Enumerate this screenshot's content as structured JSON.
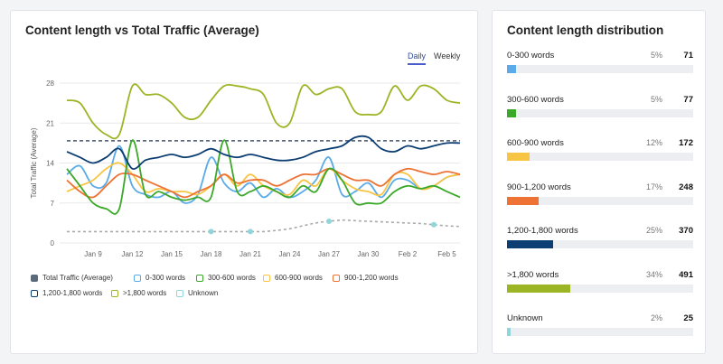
{
  "left_title": "Content length vs Total Traffic (Average)",
  "tabs": {
    "daily": "Daily",
    "weekly": "Weekly"
  },
  "colors": {
    "total": "#2c3e50",
    "s0_300": "#5aabe8",
    "s300_600": "#3aa828",
    "s600_900": "#f8c443",
    "s900_1200": "#ed7234",
    "s1200_1800": "#0d3e73",
    "s1800": "#9bb524",
    "unknown": "#8fd6db",
    "avg_line": "#46546a",
    "grid": "#e8e8e8"
  },
  "chart_data": {
    "type": "line",
    "title": "Content length vs Total Traffic (Average)",
    "ylabel": "Total Traffic (Average)",
    "xlabel": "",
    "ylim": [
      0,
      28
    ],
    "yticks": [
      0,
      7,
      14,
      21,
      28
    ],
    "x_range": [
      0,
      30
    ],
    "xticks": [
      {
        "x": 2,
        "label": "Jan 9"
      },
      {
        "x": 5,
        "label": "Jan 12"
      },
      {
        "x": 8,
        "label": "Jan 15"
      },
      {
        "x": 11,
        "label": "Jan 18"
      },
      {
        "x": 14,
        "label": "Jan 21"
      },
      {
        "x": 17,
        "label": "Jan 24"
      },
      {
        "x": 20,
        "label": "Jan 27"
      },
      {
        "x": 23,
        "label": "Jan 30"
      },
      {
        "x": 26,
        "label": "Feb 2"
      },
      {
        "x": 29,
        "label": "Feb 5"
      }
    ],
    "avg_line": 17.9,
    "series": [
      {
        "name": "Total Traffic (Average)",
        "color_key": "total",
        "style": "dashed",
        "values": [
          17.9,
          17.9
        ]
      },
      {
        "name": "0-300 words",
        "color_key": "s0_300",
        "values": [
          12,
          13.5,
          10,
          10.5,
          17,
          10,
          8.5,
          8,
          9,
          7,
          8.5,
          15,
          10.5,
          9,
          10.5,
          8,
          9.5,
          8,
          9,
          11,
          15,
          8.5,
          9,
          10.5,
          8,
          11,
          11,
          9.5,
          10,
          11.5,
          12
        ]
      },
      {
        "name": "300-600 words",
        "color_key": "s300_600",
        "values": [
          13,
          10,
          7,
          6,
          6,
          18,
          8.5,
          9,
          8,
          7.5,
          8,
          8,
          18,
          9,
          9,
          10,
          9,
          8,
          10,
          9,
          13,
          11,
          7,
          7,
          7,
          9,
          10,
          9.5,
          10,
          9,
          8
        ]
      },
      {
        "name": "600-900 words",
        "color_key": "s600_900",
        "values": [
          9,
          10,
          11,
          13,
          14,
          12,
          9,
          9.5,
          9,
          9,
          8.5,
          10,
          12,
          10,
          12,
          10,
          9,
          8.5,
          11,
          10,
          13,
          11,
          9.5,
          9,
          8.5,
          12,
          12,
          9.5,
          10,
          11.5,
          12
        ]
      },
      {
        "name": "900-1,200 words",
        "color_key": "s900_1200",
        "values": [
          11,
          9,
          8,
          10,
          12,
          12,
          11,
          10,
          9,
          8,
          9,
          10,
          12,
          10.5,
          11,
          11,
          10,
          11,
          12,
          12,
          13,
          12,
          11,
          11,
          10,
          12,
          13,
          12.5,
          12,
          12.5,
          12
        ]
      },
      {
        "name": "1,200-1,800 words",
        "color_key": "s1200_1800",
        "values": [
          16,
          15,
          14,
          15,
          16.5,
          13,
          14.5,
          15,
          15.5,
          15,
          15.5,
          16.5,
          15.5,
          15,
          15.5,
          15,
          14.5,
          14.5,
          15,
          16,
          16.5,
          17,
          18.5,
          18.5,
          16.5,
          16,
          17,
          16.5,
          17,
          17.5,
          17.5
        ]
      },
      {
        "name": ">1,800 words",
        "color_key": "s1800",
        "values": [
          25,
          24.5,
          21,
          19,
          19,
          27.5,
          26,
          26,
          24.5,
          22,
          22,
          25,
          27.5,
          27.5,
          27,
          26,
          21,
          21,
          27.5,
          26,
          27,
          27,
          23,
          22.5,
          23,
          27.5,
          25,
          27.5,
          27,
          25,
          24.5
        ]
      },
      {
        "name": "Unknown",
        "color_key": "unknown",
        "style": "dotted",
        "values": [
          2,
          2,
          2,
          2,
          2,
          2,
          2,
          2,
          2,
          2,
          2,
          2,
          2,
          2,
          2,
          2,
          2.2,
          2.5,
          3,
          3.5,
          3.8,
          4,
          3.9,
          3.8,
          3.7,
          3.6,
          3.5,
          3.4,
          3.2,
          3,
          2.9
        ],
        "markers": [
          11,
          14,
          20,
          28
        ]
      }
    ]
  },
  "legend": [
    {
      "label": "Total Traffic (Average)",
      "color_key": "total",
      "style": "solid"
    },
    {
      "label": "0-300 words",
      "color_key": "s0_300",
      "style": "outline"
    },
    {
      "label": "300-600 words",
      "color_key": "s300_600",
      "style": "outline"
    },
    {
      "label": "600-900 words",
      "color_key": "s600_900",
      "style": "outline"
    },
    {
      "label": "900-1,200 words",
      "color_key": "s900_1200",
      "style": "outline"
    },
    {
      "label": "1,200-1,800 words",
      "color_key": "s1200_1800",
      "style": "outline"
    },
    {
      "label": ">1,800 words",
      "color_key": "s1800",
      "style": "outline"
    },
    {
      "label": "Unknown",
      "color_key": "unknown",
      "style": "outline"
    }
  ],
  "right_title": "Content length distribution",
  "distribution": [
    {
      "label": "0-300 words",
      "pct": "5%",
      "count": "71",
      "fraction": 0.05,
      "color_key": "s0_300"
    },
    {
      "label": "300-600 words",
      "pct": "5%",
      "count": "77",
      "fraction": 0.05,
      "color_key": "s300_600"
    },
    {
      "label": "600-900 words",
      "pct": "12%",
      "count": "172",
      "fraction": 0.12,
      "color_key": "s600_900"
    },
    {
      "label": "900-1,200 words",
      "pct": "17%",
      "count": "248",
      "fraction": 0.17,
      "color_key": "s900_1200"
    },
    {
      "label": "1,200-1,800 words",
      "pct": "25%",
      "count": "370",
      "fraction": 0.25,
      "color_key": "s1200_1800"
    },
    {
      "label": ">1,800 words",
      "pct": "34%",
      "count": "491",
      "fraction": 0.34,
      "color_key": "s1800"
    },
    {
      "label": "Unknown",
      "pct": "2%",
      "count": "25",
      "fraction": 0.02,
      "color_key": "unknown"
    }
  ]
}
